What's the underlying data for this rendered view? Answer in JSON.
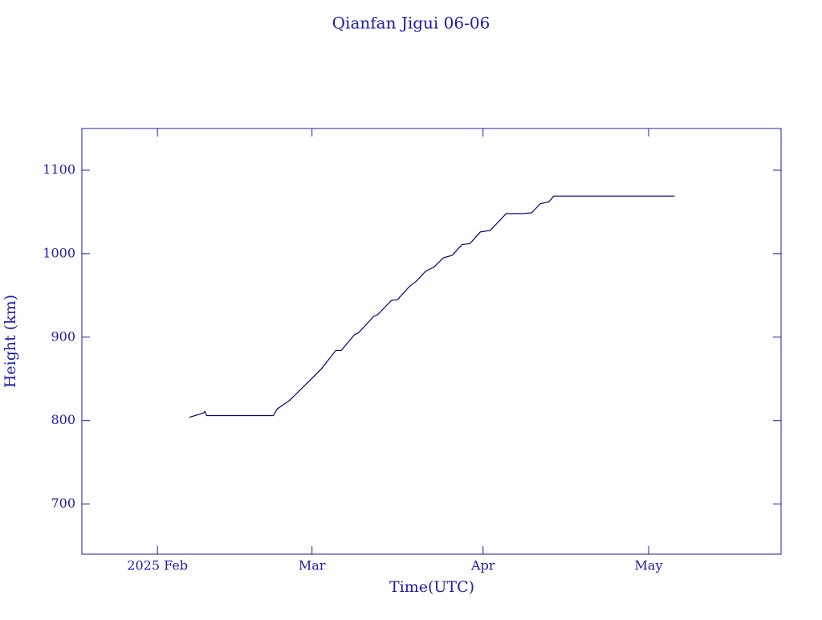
{
  "chart_data": {
    "type": "line",
    "title": "Qianfan Jigui 06-06",
    "x_label": "Time(UTC)",
    "y_label": "Height (km)",
    "xlim": [
      -13.7,
      113
    ],
    "ylim": [
      640,
      1150
    ],
    "xticks": [
      {
        "value": 0,
        "label": "2025 Feb"
      },
      {
        "value": 28,
        "label": "Mar"
      },
      {
        "value": 59,
        "label": "Apr"
      },
      {
        "value": 89,
        "label": "May"
      }
    ],
    "yticks": [
      700,
      800,
      900,
      1000,
      1100
    ],
    "grid": false,
    "series": [
      {
        "color": "#00007f",
        "x": [
          5.8,
          8.3,
          8.6,
          8.9,
          21.0,
          21.7,
          23.9,
          26.5,
          29.7,
          32.3,
          33.3,
          35.7,
          36.4,
          39.2,
          39.9,
          42.4,
          43.5,
          45.7,
          46.9,
          48.6,
          50.1,
          51.8,
          53.4,
          55.2,
          56.6,
          58.5,
          60.3,
          63.2,
          66.1,
          67.8,
          69.4,
          70.9,
          71.8,
          93.7
        ],
        "values": [
          804,
          809,
          811,
          806,
          806,
          814,
          824,
          841,
          862,
          884,
          884,
          903,
          905,
          925,
          927,
          944,
          945,
          961,
          967,
          979,
          984,
          995,
          998,
          1011,
          1012,
          1026,
          1028,
          1048,
          1048,
          1049,
          1060,
          1062,
          1069,
          1069
        ]
      }
    ]
  }
}
